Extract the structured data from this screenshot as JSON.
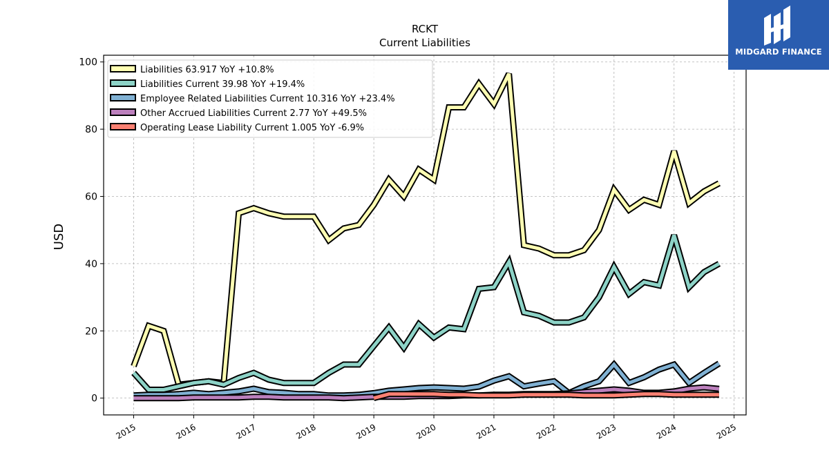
{
  "brand": {
    "name": "MIDGARD FINANCE",
    "bg_color": "#2a5db0"
  },
  "chart_data": {
    "type": "line",
    "title": "RCKT",
    "subtitle": "Current  Liabilities",
    "ylabel": "USD",
    "xlabel": "",
    "ylim": [
      -5,
      102
    ],
    "xlim": [
      2014.5,
      2025.2
    ],
    "yticks": [
      0,
      20,
      40,
      60,
      80,
      100
    ],
    "xticks": [
      2015,
      2016,
      2017,
      2018,
      2019,
      2020,
      2021,
      2022,
      2023,
      2024,
      2025
    ],
    "grid": true,
    "legend_position": "top-left",
    "series": [
      {
        "name": "Liabilities  63.917 YoY +10.8%",
        "color": "#ffffb3",
        "x": [
          2015.0,
          2015.25,
          2015.5,
          2015.75,
          2016.0,
          2016.25,
          2016.5,
          2016.75,
          2017.0,
          2017.25,
          2017.5,
          2017.75,
          2018.0,
          2018.25,
          2018.5,
          2018.75,
          2019.0,
          2019.25,
          2019.5,
          2019.75,
          2020.0,
          2020.25,
          2020.5,
          2020.75,
          2021.0,
          2021.25,
          2021.5,
          2021.75,
          2022.0,
          2022.25,
          2022.5,
          2022.75,
          2023.0,
          2023.25,
          2023.5,
          2023.75,
          2024.0,
          2024.25,
          2024.5,
          2024.75
        ],
        "y": [
          9.5,
          21.5,
          20.0,
          4.0,
          4.5,
          5.0,
          4.5,
          55.0,
          56.5,
          55.0,
          54.0,
          54.0,
          54.0,
          47.0,
          50.5,
          51.5,
          57.5,
          65.0,
          60.0,
          68.0,
          65.0,
          86.5,
          86.5,
          93.5,
          87.5,
          96.5,
          45.5,
          44.5,
          42.5,
          42.5,
          44.0,
          50.0,
          62.0,
          56.0,
          59.0,
          57.5,
          73.5,
          58.0,
          61.5,
          63.9
        ]
      },
      {
        "name": "Liabilities Current  39.98 YoY +19.4%",
        "color": "#8dd3c7",
        "x": [
          2015.0,
          2015.25,
          2015.5,
          2015.75,
          2016.0,
          2016.25,
          2016.5,
          2016.75,
          2017.0,
          2017.25,
          2017.5,
          2017.75,
          2018.0,
          2018.25,
          2018.5,
          2018.75,
          2019.0,
          2019.25,
          2019.5,
          2019.75,
          2020.0,
          2020.25,
          2020.5,
          2020.75,
          2021.0,
          2021.25,
          2021.5,
          2021.75,
          2022.0,
          2022.25,
          2022.5,
          2022.75,
          2023.0,
          2023.25,
          2023.5,
          2023.75,
          2024.0,
          2024.25,
          2024.5,
          2024.75
        ],
        "y": [
          7.5,
          2.5,
          2.5,
          3.5,
          4.5,
          5.0,
          4.0,
          6.0,
          7.5,
          5.5,
          4.5,
          4.5,
          4.5,
          7.5,
          10.0,
          10.0,
          15.5,
          21.0,
          15.0,
          22.0,
          18.0,
          21.0,
          20.5,
          32.5,
          33.0,
          40.5,
          25.5,
          24.5,
          22.5,
          22.5,
          24.0,
          30.0,
          39.0,
          31.0,
          34.5,
          33.5,
          48.5,
          33.0,
          37.5,
          39.98
        ]
      },
      {
        "name": "Employee Related Liabilities Current  10.316 YoY +23.4%",
        "color": "#80b1d3",
        "x": [
          2015.0,
          2015.25,
          2015.5,
          2015.75,
          2016.0,
          2016.25,
          2016.5,
          2016.75,
          2017.0,
          2017.25,
          2017.5,
          2017.75,
          2018.0,
          2018.25,
          2018.5,
          2018.75,
          2019.0,
          2019.25,
          2019.5,
          2019.75,
          2020.0,
          2020.25,
          2020.5,
          2020.75,
          2021.0,
          2021.25,
          2021.5,
          2021.75,
          2022.0,
          2022.25,
          2022.5,
          2022.75,
          2023.0,
          2023.25,
          2023.5,
          2023.75,
          2024.0,
          2024.25,
          2024.5,
          2024.75
        ],
        "y": [
          0.8,
          1.0,
          1.0,
          1.2,
          1.6,
          1.2,
          1.6,
          2.0,
          2.8,
          1.8,
          1.6,
          1.2,
          1.2,
          0.8,
          0.8,
          1.0,
          1.5,
          2.2,
          2.6,
          3.0,
          3.2,
          3.0,
          2.8,
          3.4,
          5.2,
          6.5,
          3.5,
          4.3,
          5.0,
          1.5,
          3.5,
          5.0,
          10.0,
          4.5,
          6.2,
          8.5,
          10.0,
          4.5,
          7.5,
          10.3
        ]
      },
      {
        "name": "Other Accrued Liabilities Current  2.77 YoY +49.5%",
        "color": "#bc80bd",
        "x": [
          2015.0,
          2015.25,
          2015.5,
          2015.75,
          2016.0,
          2016.25,
          2016.5,
          2016.75,
          2017.0,
          2017.25,
          2017.5,
          2017.75,
          2018.0,
          2018.25,
          2018.5,
          2018.75,
          2019.0,
          2019.25,
          2019.5,
          2019.75,
          2020.0,
          2020.25,
          2020.5,
          2020.75,
          2021.0,
          2021.25,
          2021.5,
          2021.75,
          2022.0,
          2022.25,
          2022.5,
          2022.75,
          2023.0,
          2023.25,
          2023.5,
          2023.75,
          2024.0,
          2024.25,
          2024.5,
          2024.75
        ],
        "y": [
          0.0,
          0.0,
          0.0,
          0.0,
          0.2,
          0.2,
          0.2,
          0.2,
          0.4,
          0.4,
          0.2,
          0.2,
          0.2,
          0.2,
          0.0,
          0.2,
          0.4,
          0.4,
          0.4,
          0.6,
          0.6,
          0.6,
          0.8,
          0.8,
          1.0,
          1.0,
          1.2,
          1.2,
          1.2,
          1.4,
          1.8,
          2.2,
          2.6,
          2.2,
          1.6,
          1.6,
          2.0,
          2.8,
          3.2,
          2.77
        ]
      },
      {
        "name": "Operating Lease Liability Current  1.005 YoY -6.9%",
        "color": "#fb8072",
        "x": [
          2019.0,
          2019.25,
          2019.5,
          2019.75,
          2020.0,
          2020.25,
          2020.5,
          2020.75,
          2021.0,
          2021.25,
          2021.5,
          2021.75,
          2022.0,
          2022.25,
          2022.5,
          2022.75,
          2023.0,
          2023.25,
          2023.5,
          2023.75,
          2024.0,
          2024.25,
          2024.5,
          2024.75
        ],
        "y": [
          0.0,
          1.2,
          1.2,
          1.2,
          1.2,
          1.0,
          1.0,
          0.8,
          0.8,
          0.8,
          1.0,
          1.0,
          1.0,
          1.0,
          0.8,
          0.8,
          0.8,
          1.0,
          1.2,
          1.2,
          1.0,
          1.0,
          1.0,
          1.0
        ]
      }
    ]
  }
}
